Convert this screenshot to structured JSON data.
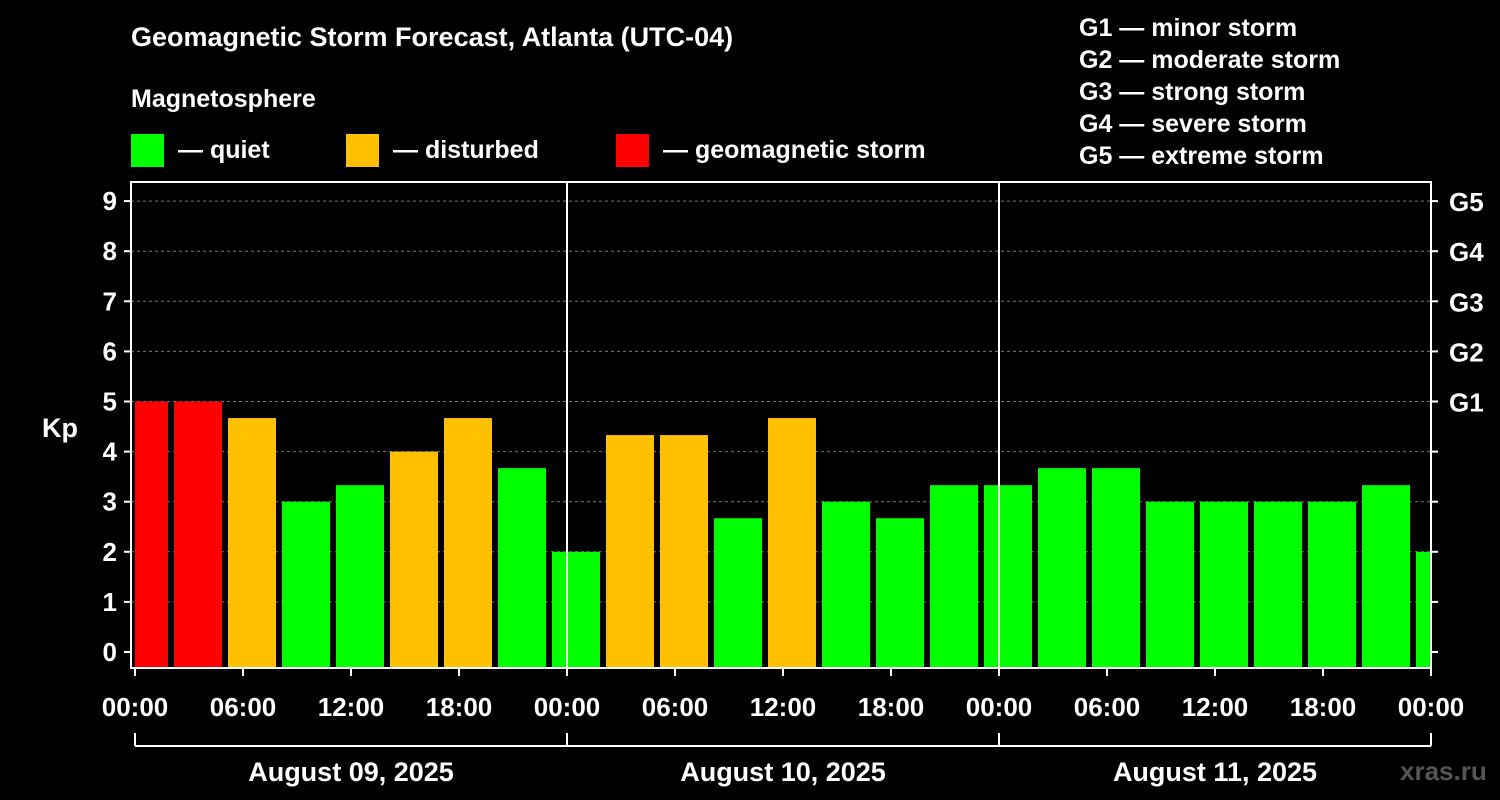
{
  "header": {
    "title": "Geomagnetic Storm Forecast, Atlanta (UTC-04)",
    "subtitle": "Magnetosphere"
  },
  "legend": [
    {
      "label": "— quiet",
      "color": "#00ff00"
    },
    {
      "label": "— disturbed",
      "color": "#ffc000"
    },
    {
      "label": "— geomagnetic storm",
      "color": "#ff0000"
    }
  ],
  "g_levels": [
    "G1 — minor storm",
    "G2 — moderate storm",
    "G3 — strong storm",
    "G4 — severe storm",
    "G5 — extreme storm"
  ],
  "watermark": "xras.ru",
  "chart_data": {
    "type": "bar",
    "title": "Geomagnetic Storm Forecast, Atlanta (UTC-04)",
    "ylabel": "Kp",
    "ylim": [
      0,
      9
    ],
    "yticks": [
      "0",
      "1",
      "2",
      "3",
      "4",
      "5",
      "6",
      "7",
      "8",
      "9"
    ],
    "right_ticks": [
      {
        "kp": 5,
        "label": "G1"
      },
      {
        "kp": 6,
        "label": "G2"
      },
      {
        "kp": 7,
        "label": "G3"
      },
      {
        "kp": 8,
        "label": "G4"
      },
      {
        "kp": 9,
        "label": "G5"
      }
    ],
    "x_tick_hours": [
      0,
      6,
      12,
      18,
      24,
      30,
      36,
      42,
      48,
      54,
      60,
      66,
      72
    ],
    "xtick_labels": [
      "00:00",
      "06:00",
      "12:00",
      "18:00",
      "00:00",
      "06:00",
      "12:00",
      "18:00",
      "00:00",
      "06:00",
      "12:00",
      "18:00",
      "00:00"
    ],
    "day_boundaries_hours": [
      24,
      48
    ],
    "days": [
      {
        "label": "August 09, 2025",
        "start_hour": 0,
        "end_hour": 24
      },
      {
        "label": "August 10, 2025",
        "start_hour": 24,
        "end_hour": 48
      },
      {
        "label": "August 11, 2025",
        "start_hour": 48,
        "end_hour": 72
      }
    ],
    "x_range_hours": [
      0,
      72
    ],
    "bars": [
      {
        "start_hour": 0,
        "end_hour": 2,
        "kp": 5.0,
        "status": "storm"
      },
      {
        "start_hour": 2,
        "end_hour": 5,
        "kp": 5.0,
        "status": "storm"
      },
      {
        "start_hour": 5,
        "end_hour": 8,
        "kp": 4.67,
        "status": "disturbed"
      },
      {
        "start_hour": 8,
        "end_hour": 11,
        "kp": 3.0,
        "status": "quiet"
      },
      {
        "start_hour": 11,
        "end_hour": 14,
        "kp": 3.33,
        "status": "quiet"
      },
      {
        "start_hour": 14,
        "end_hour": 17,
        "kp": 4.0,
        "status": "disturbed"
      },
      {
        "start_hour": 17,
        "end_hour": 20,
        "kp": 4.67,
        "status": "disturbed"
      },
      {
        "start_hour": 20,
        "end_hour": 23,
        "kp": 3.67,
        "status": "quiet"
      },
      {
        "start_hour": 23,
        "end_hour": 26,
        "kp": 2.0,
        "status": "quiet"
      },
      {
        "start_hour": 26,
        "end_hour": 29,
        "kp": 4.33,
        "status": "disturbed"
      },
      {
        "start_hour": 29,
        "end_hour": 32,
        "kp": 4.33,
        "status": "disturbed"
      },
      {
        "start_hour": 32,
        "end_hour": 35,
        "kp": 2.67,
        "status": "quiet"
      },
      {
        "start_hour": 35,
        "end_hour": 38,
        "kp": 4.67,
        "status": "disturbed"
      },
      {
        "start_hour": 38,
        "end_hour": 41,
        "kp": 3.0,
        "status": "quiet"
      },
      {
        "start_hour": 41,
        "end_hour": 44,
        "kp": 2.67,
        "status": "quiet"
      },
      {
        "start_hour": 44,
        "end_hour": 47,
        "kp": 3.33,
        "status": "quiet"
      },
      {
        "start_hour": 47,
        "end_hour": 50,
        "kp": 3.33,
        "status": "quiet"
      },
      {
        "start_hour": 50,
        "end_hour": 53,
        "kp": 3.67,
        "status": "quiet"
      },
      {
        "start_hour": 53,
        "end_hour": 56,
        "kp": 3.67,
        "status": "quiet"
      },
      {
        "start_hour": 56,
        "end_hour": 59,
        "kp": 3.0,
        "status": "quiet"
      },
      {
        "start_hour": 59,
        "end_hour": 62,
        "kp": 3.0,
        "status": "quiet"
      },
      {
        "start_hour": 62,
        "end_hour": 65,
        "kp": 3.0,
        "status": "quiet"
      },
      {
        "start_hour": 65,
        "end_hour": 68,
        "kp": 3.0,
        "status": "quiet"
      },
      {
        "start_hour": 68,
        "end_hour": 71,
        "kp": 3.33,
        "status": "quiet"
      },
      {
        "start_hour": 71,
        "end_hour": 72,
        "kp": 2.0,
        "status": "quiet"
      }
    ],
    "status_colors": {
      "quiet": "#00ff00",
      "disturbed": "#ffc000",
      "storm": "#ff0000"
    },
    "grid": true
  }
}
